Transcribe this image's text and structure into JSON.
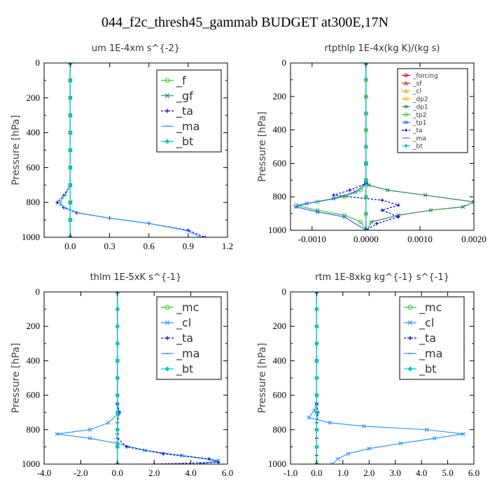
{
  "figure_title": "044_f2c_thresh45_gammab  BUDGET at300E,17N",
  "chart_data": [
    {
      "type": "line",
      "title": "um  1E-4xm s^{-2}",
      "ylabel": "Pressure [hPa]",
      "xlim": [
        -0.2,
        1.2
      ],
      "ylim": [
        1000,
        0
      ],
      "xticks": [
        "0.0",
        "0.3",
        "0.6",
        "0.9",
        "1.2"
      ],
      "xtick_values": [
        0.0,
        0.3,
        0.6,
        0.9,
        1.2
      ],
      "yticks": [
        "0",
        "200",
        "400",
        "600",
        "800",
        "1000"
      ],
      "ytick_values": [
        0,
        200,
        400,
        600,
        800,
        1000
      ],
      "legend": {
        "position": "top-right",
        "size": "large"
      },
      "series": [
        {
          "name": "_f",
          "color": "#33cc33",
          "marker": "circle",
          "x": [
            0.0,
            0.0,
            0.0,
            0.0,
            0.0,
            0.0,
            0.0,
            0.0,
            0.0,
            0.0,
            0.0
          ],
          "y": [
            0,
            100,
            200,
            300,
            400,
            500,
            600,
            700,
            800,
            900,
            1000
          ]
        },
        {
          "name": "_gf",
          "color": "#2e8b57",
          "marker": "x",
          "x": [
            0.0,
            0.0,
            0.0,
            0.0,
            0.0,
            0.0,
            0.0,
            0.0,
            0.0,
            0.0,
            0.0
          ],
          "y": [
            0,
            100,
            200,
            300,
            400,
            500,
            600,
            700,
            800,
            900,
            1000
          ]
        },
        {
          "name": "_ta",
          "color": "#0000cc",
          "marker": "plus",
          "dashed": true,
          "x": [
            0.0,
            0.0,
            0.0,
            0.0,
            0.0,
            -0.05,
            -0.1,
            -0.05,
            0.05,
            0.3,
            0.6,
            0.9,
            1.03
          ],
          "y": [
            0,
            200,
            400,
            600,
            700,
            760,
            800,
            830,
            860,
            890,
            920,
            960,
            1000
          ]
        },
        {
          "name": "_ma",
          "color": "#3399ff",
          "marker": "dash",
          "x": [
            0.0,
            0.0,
            0.0,
            0.0,
            0.0,
            -0.04,
            -0.08,
            -0.04,
            0.06,
            0.3,
            0.6,
            0.88,
            1.0
          ],
          "y": [
            0,
            200,
            400,
            600,
            700,
            760,
            800,
            830,
            860,
            890,
            920,
            960,
            1000
          ]
        },
        {
          "name": "_bt",
          "color": "#00cccc",
          "marker": "diamond",
          "x": [
            0.0,
            0.0,
            0.0,
            0.0,
            0.0,
            0.0,
            0.0,
            0.0,
            0.0,
            0.0,
            0.0
          ],
          "y": [
            0,
            100,
            200,
            300,
            400,
            500,
            600,
            700,
            800,
            900,
            1000
          ]
        }
      ]
    },
    {
      "type": "line",
      "title": "rtpthlp  1E-4x(kg K)/(kg s)",
      "ylabel": "Pressure [hPa]",
      "xlim": [
        -0.0014,
        0.002
      ],
      "ylim": [
        1000,
        0
      ],
      "xticks": [
        "-0.0010",
        "0.0000",
        "0.0010",
        "0.0020"
      ],
      "xtick_values": [
        -0.001,
        0.0,
        0.001,
        0.002
      ],
      "yticks": [
        "0",
        "200",
        "400",
        "600",
        "800",
        "1000"
      ],
      "ytick_values": [
        0,
        200,
        400,
        600,
        800,
        1000
      ],
      "legend": {
        "position": "top-right",
        "size": "small"
      },
      "series": [
        {
          "name": "_forcing",
          "color": "#cc0000",
          "marker": "circle",
          "x": [
            0,
            0,
            0,
            0,
            0,
            0,
            0,
            0,
            0,
            0,
            0
          ],
          "y": [
            0,
            100,
            200,
            300,
            400,
            500,
            600,
            700,
            800,
            900,
            1000
          ]
        },
        {
          "name": "_sf",
          "color": "#cc3333",
          "marker": "triangle",
          "x": [
            0,
            0,
            0,
            0,
            0,
            0,
            0,
            0,
            0,
            0,
            0
          ],
          "y": [
            0,
            100,
            200,
            300,
            400,
            500,
            600,
            700,
            800,
            900,
            1000
          ]
        },
        {
          "name": "_cl",
          "color": "#e6a817",
          "marker": "triangle",
          "x": [
            0,
            0,
            0,
            0,
            0,
            0,
            0,
            0,
            0,
            0,
            0
          ],
          "y": [
            0,
            100,
            200,
            300,
            400,
            500,
            600,
            700,
            800,
            900,
            1000
          ]
        },
        {
          "name": "_dp2",
          "color": "#e6c200",
          "marker": "circle",
          "x": [
            0,
            0,
            0,
            0,
            0,
            0,
            0,
            0,
            0,
            0,
            0
          ],
          "y": [
            0,
            100,
            200,
            300,
            400,
            500,
            600,
            700,
            800,
            900,
            1000
          ]
        },
        {
          "name": "_dp1",
          "color": "#2e8b57",
          "marker": "x",
          "x": [
            0,
            0,
            0,
            5e-05,
            0.0004,
            0.0011,
            0.002,
            0.0018,
            0.0012,
            0.0006,
            0.0001,
            2e-05
          ],
          "y": [
            0,
            600,
            700,
            730,
            760,
            790,
            830,
            860,
            880,
            910,
            950,
            1000
          ]
        },
        {
          "name": "_tp2",
          "color": "#33cc33",
          "marker": "circle",
          "x": [
            0,
            0,
            0,
            -0.0001,
            -0.0004,
            -0.0009,
            -0.0013,
            -0.0009,
            -0.0004,
            -0.0001,
            0
          ],
          "y": [
            0,
            600,
            720,
            760,
            800,
            830,
            850,
            880,
            910,
            950,
            1000
          ]
        },
        {
          "name": "_tp1",
          "color": "#3366ff",
          "marker": "x",
          "x": [
            0,
            0,
            0,
            -0.0002,
            -0.0006,
            -0.0011,
            -0.0013,
            -0.0009,
            -0.0004,
            0
          ],
          "y": [
            0,
            600,
            720,
            770,
            810,
            840,
            860,
            890,
            920,
            1000
          ]
        },
        {
          "name": "_ta",
          "color": "#0000cc",
          "marker": "plus",
          "dashed": true,
          "x": [
            0,
            0,
            0,
            -0.0003,
            -0.0006,
            0.0003,
            0.0006,
            0.0003,
            0.0006,
            0.0002,
            0
          ],
          "y": [
            0,
            600,
            720,
            760,
            790,
            820,
            850,
            880,
            920,
            960,
            1000
          ]
        },
        {
          "name": "_ma",
          "color": "#3399ff",
          "marker": "dash",
          "x": [
            0,
            0,
            0,
            0,
            0,
            0,
            0,
            0,
            0,
            0,
            0
          ],
          "y": [
            0,
            100,
            200,
            300,
            400,
            500,
            600,
            700,
            800,
            900,
            1000
          ]
        },
        {
          "name": "_bt",
          "color": "#00cccc",
          "marker": "diamond",
          "x": [
            0,
            0,
            0,
            0,
            0,
            0,
            0,
            0,
            0,
            0,
            0
          ],
          "y": [
            0,
            100,
            200,
            300,
            400,
            500,
            600,
            700,
            800,
            900,
            1000
          ]
        }
      ]
    },
    {
      "type": "line",
      "title": "thlm  1E-5xK s^{-1}",
      "ylabel": "Pressure [hPa]",
      "xlim": [
        -4.0,
        6.0
      ],
      "ylim": [
        1000,
        0
      ],
      "xticks": [
        "-4.0",
        "-2.0",
        "0.0",
        "2.0",
        "4.0",
        "6.0"
      ],
      "xtick_values": [
        -4,
        -2,
        0,
        2,
        4,
        6
      ],
      "yticks": [
        "0",
        "200",
        "400",
        "600",
        "800",
        "1000"
      ],
      "ytick_values": [
        0,
        200,
        400,
        600,
        800,
        1000
      ],
      "legend": {
        "position": "top-right",
        "size": "large"
      },
      "series": [
        {
          "name": "_mc",
          "color": "#33cc33",
          "marker": "circle",
          "x": [
            0,
            0,
            0,
            0,
            0,
            0,
            0,
            0,
            0,
            0,
            0
          ],
          "y": [
            0,
            100,
            200,
            300,
            400,
            500,
            600,
            700,
            800,
            900,
            1000
          ]
        },
        {
          "name": "_cl",
          "color": "#3399ff",
          "marker": "x",
          "x": [
            0,
            0,
            0,
            0.1,
            -0.5,
            -1.5,
            -3.3,
            -1.5,
            0,
            1.5,
            3.5,
            5.5,
            4.5
          ],
          "y": [
            0,
            400,
            650,
            700,
            760,
            800,
            825,
            850,
            880,
            920,
            950,
            980,
            1000
          ]
        },
        {
          "name": "_ta",
          "color": "#0000cc",
          "marker": "plus",
          "dashed": true,
          "x": [
            0,
            0,
            0,
            0.1,
            0,
            0,
            0,
            0,
            0.5,
            2.5,
            5.0,
            5.5,
            2.0
          ],
          "y": [
            0,
            400,
            650,
            700,
            760,
            800,
            825,
            850,
            900,
            940,
            970,
            990,
            1000
          ]
        },
        {
          "name": "_ma",
          "color": "#3399ff",
          "marker": "dash",
          "x": [
            0,
            0,
            0,
            0,
            0,
            0,
            0,
            0,
            0,
            0,
            0
          ],
          "y": [
            0,
            100,
            200,
            300,
            400,
            500,
            600,
            700,
            800,
            900,
            1000
          ]
        },
        {
          "name": "_bt",
          "color": "#00cccc",
          "marker": "diamond",
          "x": [
            0,
            0,
            0,
            0,
            0,
            0,
            0,
            0,
            0,
            0,
            0
          ],
          "y": [
            0,
            100,
            200,
            300,
            400,
            500,
            600,
            700,
            800,
            900,
            1000
          ]
        }
      ]
    },
    {
      "type": "line",
      "title": "rtm  1E-8xkg kg^{-1} s^{-1}",
      "ylabel": "Pressure [hPa]",
      "xlim": [
        -1.0,
        6.0
      ],
      "ylim": [
        1000,
        0
      ],
      "xticks": [
        "-1.0",
        "0.0",
        "1.0",
        "2.0",
        "3.0",
        "4.0",
        "5.0",
        "6.0"
      ],
      "xtick_values": [
        -1,
        0,
        1,
        2,
        3,
        4,
        5,
        6
      ],
      "yticks": [
        "0",
        "200",
        "400",
        "600",
        "800",
        "1000"
      ],
      "ytick_values": [
        0,
        200,
        400,
        600,
        800,
        1000
      ],
      "legend": {
        "position": "top-right",
        "size": "large"
      },
      "series": [
        {
          "name": "_mc",
          "color": "#33cc33",
          "marker": "circle",
          "x": [
            0,
            0,
            0,
            0,
            0,
            0,
            0,
            0,
            0,
            0,
            0
          ],
          "y": [
            0,
            100,
            200,
            300,
            400,
            500,
            600,
            700,
            800,
            900,
            1000
          ]
        },
        {
          "name": "_cl",
          "color": "#3399ff",
          "marker": "x",
          "x": [
            0,
            0,
            0,
            -0.1,
            -0.3,
            0.5,
            1.8,
            4.2,
            5.6,
            4.5,
            3.2,
            2.0,
            1.2,
            0.8,
            0.6
          ],
          "y": [
            0,
            400,
            650,
            690,
            730,
            760,
            780,
            800,
            825,
            850,
            880,
            910,
            940,
            970,
            1000
          ]
        },
        {
          "name": "_ta",
          "color": "#0000cc",
          "marker": "plus",
          "dashed": true,
          "x": [
            0,
            0,
            0,
            0.05,
            0,
            0,
            0,
            0
          ],
          "y": [
            0,
            400,
            650,
            700,
            760,
            850,
            950,
            1000
          ]
        },
        {
          "name": "_ma",
          "color": "#3399ff",
          "marker": "dash",
          "x": [
            0,
            0,
            0,
            0,
            0,
            0,
            0,
            0,
            0,
            0,
            0
          ],
          "y": [
            0,
            100,
            200,
            300,
            400,
            500,
            600,
            700,
            800,
            900,
            1000
          ]
        },
        {
          "name": "_bt",
          "color": "#00cccc",
          "marker": "diamond",
          "x": [
            0,
            0,
            0,
            0,
            0,
            0,
            0,
            0,
            0,
            0,
            0
          ],
          "y": [
            0,
            100,
            200,
            300,
            400,
            500,
            600,
            700,
            800,
            900,
            1000
          ]
        }
      ]
    }
  ]
}
